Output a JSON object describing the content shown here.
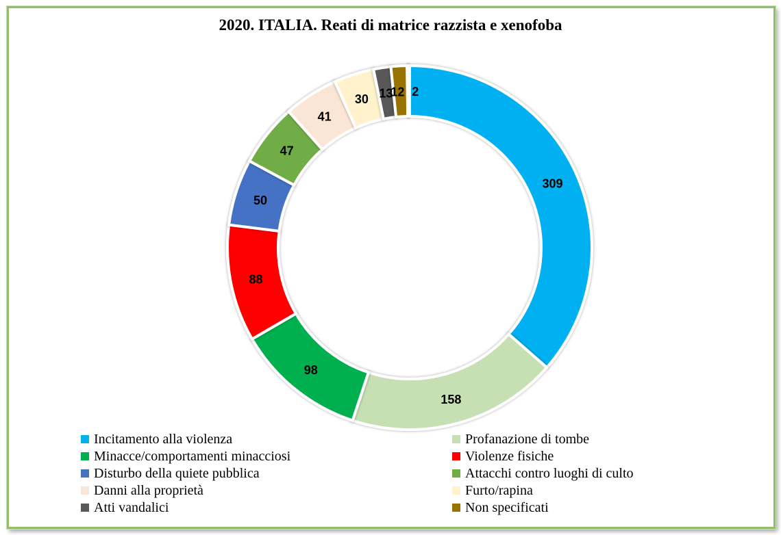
{
  "chart_data": {
    "type": "pie",
    "title": "2020. ITALIA. Reati di matrice razzista e xenofoba",
    "donut": true,
    "series": [
      {
        "name": "Incitamento alla violenza",
        "value": 309,
        "color": "#00b0f0"
      },
      {
        "name": "Profanazione di tombe",
        "value": 158,
        "color": "#c6e0b4"
      },
      {
        "name": "Minacce/comportamenti minacciosi",
        "value": 98,
        "color": "#00b050"
      },
      {
        "name": "Violenze fisiche",
        "value": 88,
        "color": "#ff0000"
      },
      {
        "name": "Disturbo della quiete pubblica",
        "value": 50,
        "color": "#4472c4"
      },
      {
        "name": "Attacchi contro luoghi di culto",
        "value": 47,
        "color": "#70ad47"
      },
      {
        "name": "Danni alla proprietà",
        "value": 41,
        "color": "#fbe5d6"
      },
      {
        "name": "Furto/rapina",
        "value": 30,
        "color": "#fff2cc"
      },
      {
        "name": "Atti vandalici",
        "value": 13,
        "color": "#595959"
      },
      {
        "name": "Non specificati",
        "value": 12,
        "color": "#997300"
      },
      {
        "name": "",
        "value": 2,
        "color": "#1f3864"
      }
    ],
    "legend": {
      "position": "bottom",
      "columns": 2
    }
  }
}
